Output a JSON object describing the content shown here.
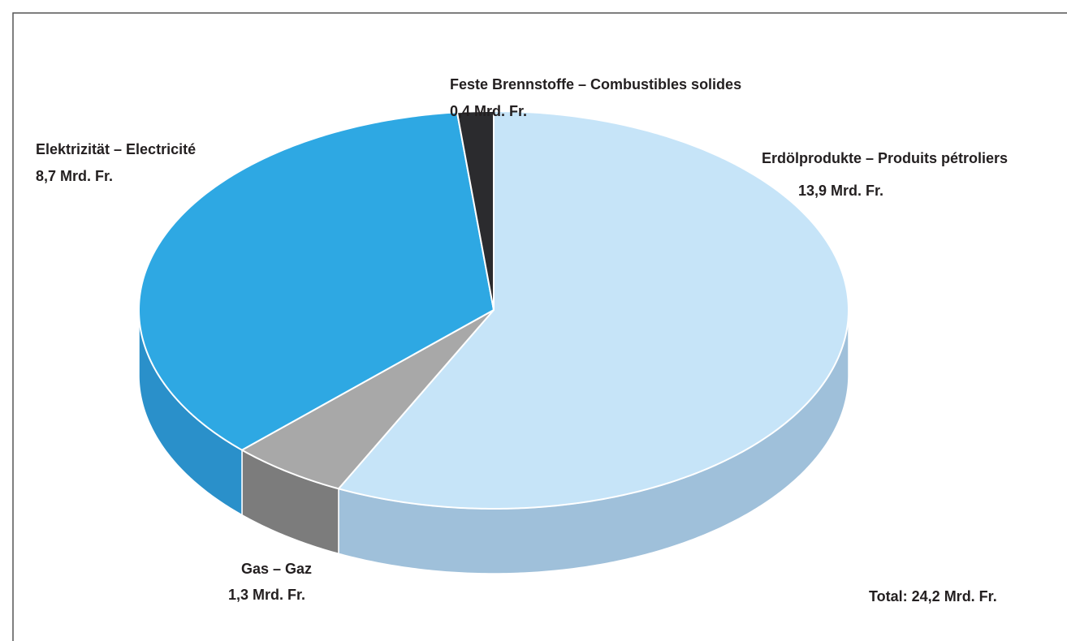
{
  "chart_data": {
    "type": "pie",
    "style": "3d",
    "categories": [
      "Erdölprodukte – Produits pétroliers",
      "Gas – Gaz",
      "Elektrizität – Electricité",
      "Feste Brennstoffe – Combustibles solides"
    ],
    "values": [
      13.9,
      1.3,
      8.7,
      0.4
    ],
    "value_labels": [
      "13,9 Mrd. Fr.",
      "1,3 Mrd. Fr.",
      "8,7 Mrd. Fr.",
      "0,4 Mrd. Fr."
    ],
    "colors": [
      "#c6e4f8",
      "#a8a8a8",
      "#2ea8e3",
      "#2b2b2e"
    ],
    "side_colors": [
      "#9fc0da",
      "#7c7c7c",
      "#2a90ca",
      "#1c1c1e"
    ],
    "annotation": "Total: 24,2 Mrd. Fr."
  }
}
